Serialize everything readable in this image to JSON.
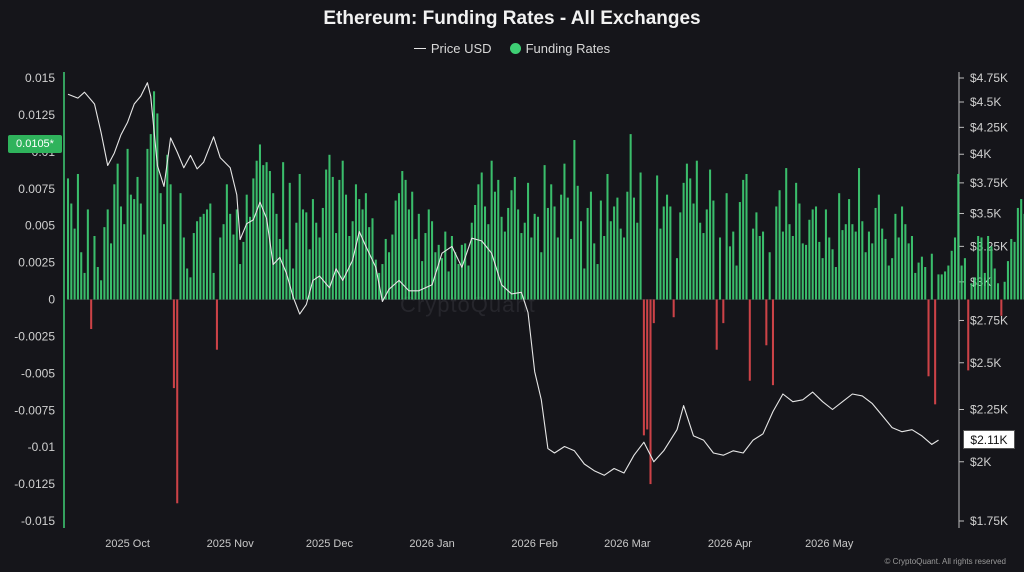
{
  "chart_data": {
    "type": "bar+line",
    "title": "Ethereum: Funding Rates - All Exchanges",
    "legend": [
      "Price USD",
      "Funding Rates"
    ],
    "legend_position": "top-center",
    "grid": false,
    "colors": {
      "positive": "#3ecf74",
      "negative": "#e0474c",
      "price_line": "#e6e6e6",
      "background": "#15151a"
    },
    "left_axis": {
      "name": "Funding Rates",
      "ylim": [
        -0.015,
        0.015
      ],
      "ticks": [
        "0.015",
        "0.0125",
        "0.01",
        "0.0075",
        "0.005",
        "0.0025",
        "0",
        "-0.0025",
        "-0.005",
        "-0.0075",
        "-0.01",
        "-0.0125",
        "-0.015"
      ]
    },
    "right_axis": {
      "name": "Price USD",
      "scale": "log",
      "ylim": [
        1750,
        4750
      ],
      "ticks": [
        {
          "value": 4750,
          "label": "$4.75K"
        },
        {
          "value": 4500,
          "label": "$4.5K"
        },
        {
          "value": 4250,
          "label": "$4.25K"
        },
        {
          "value": 4000,
          "label": "$4K"
        },
        {
          "value": 3750,
          "label": "$3.75K"
        },
        {
          "value": 3500,
          "label": "$3.5K"
        },
        {
          "value": 3250,
          "label": "$3.25K"
        },
        {
          "value": 3000,
          "label": "$3K"
        },
        {
          "value": 2750,
          "label": "$2.75K"
        },
        {
          "value": 2500,
          "label": "$2.5K"
        },
        {
          "value": 2250,
          "label": "$2.25K"
        },
        {
          "value": 2000,
          "label": "$2K"
        },
        {
          "value": 1750,
          "label": "$1.75K"
        }
      ]
    },
    "x_axis": {
      "range": [
        "2025-09-13",
        "2026-06-08"
      ],
      "ticks": [
        {
          "date": "2025-10-01",
          "label": "2025 Oct"
        },
        {
          "date": "2025-11-01",
          "label": "2025 Nov"
        },
        {
          "date": "2025-12-01",
          "label": "2025 Dec"
        },
        {
          "date": "2026-01-01",
          "label": "2026 Jan"
        },
        {
          "date": "2026-02-01",
          "label": "2026 Feb"
        },
        {
          "date": "2026-03-01",
          "label": "2026 Mar"
        },
        {
          "date": "2026-04-01",
          "label": "2026 Apr"
        },
        {
          "date": "2026-05-01",
          "label": "2026 May"
        }
      ]
    },
    "funding_rates": {
      "start_date": "2025-09-13",
      "interval_days": 1,
      "values": [
        0.0082,
        0.0065,
        0.0048,
        0.0085,
        0.0032,
        0.0018,
        0.0061,
        -0.002,
        0.0043,
        0.0022,
        0.0013,
        0.0049,
        0.0061,
        0.0038,
        0.0078,
        0.0092,
        0.0063,
        0.0051,
        0.0102,
        0.0071,
        0.0068,
        0.0083,
        0.0065,
        0.0044,
        0.0102,
        0.0112,
        0.0141,
        0.0126,
        0.0072,
        0.0051,
        0.0098,
        0.0078,
        -0.006,
        -0.0138,
        0.0072,
        0.0042,
        0.0021,
        0.0015,
        0.0045,
        0.0053,
        0.0056,
        0.0058,
        0.0061,
        0.0065,
        0.0018,
        -0.0034,
        0.0042,
        0.0051,
        0.0078,
        0.0058,
        0.0044,
        0.0061,
        0.0024,
        0.0039,
        0.0071,
        0.0056,
        0.0082,
        0.0094,
        0.0105,
        0.0091,
        0.0093,
        0.0087,
        0.0072,
        0.0058,
        0.0041,
        0.0093,
        0.0034,
        0.0079,
        0.0021,
        0.0052,
        0.0085,
        0.0061,
        0.0059,
        0.0034,
        0.0068,
        0.0052,
        0.0042,
        0.0062,
        0.0088,
        0.0098,
        0.0083,
        0.0045,
        0.0081,
        0.0094,
        0.0071,
        0.0043,
        0.0053,
        0.0078,
        0.0068,
        0.0061,
        0.0072,
        0.0049,
        0.0055,
        0.0027,
        0.0018,
        0.0024,
        0.0041,
        0.0032,
        0.0044,
        0.0067,
        0.0072,
        0.0087,
        0.0081,
        0.0061,
        0.0073,
        0.0041,
        0.0058,
        0.0026,
        0.0045,
        0.0061,
        0.0053,
        0.0032,
        0.0037,
        0.0028,
        0.0046,
        0.0019,
        0.0043,
        0.0032,
        0.0024,
        0.0037,
        0.0038,
        0.0023,
        0.0052,
        0.0064,
        0.0078,
        0.0086,
        0.0063,
        0.0051,
        0.0094,
        0.0073,
        0.0081,
        0.0056,
        0.0046,
        0.0062,
        0.0074,
        0.0083,
        0.0061,
        0.0045,
        0.0052,
        0.0079,
        0.0042,
        0.0058,
        0.0056,
        0.0032,
        0.0091,
        0.0062,
        0.0078,
        0.0063,
        0.0042,
        0.0071,
        0.0092,
        0.0069,
        0.0041,
        0.0108,
        0.0077,
        0.0053,
        0.0021,
        0.0062,
        0.0073,
        0.0038,
        0.0024,
        0.0067,
        0.0043,
        0.0085,
        0.0053,
        0.0063,
        0.0069,
        0.0048,
        0.0042,
        0.0073,
        0.0112,
        0.0069,
        0.0052,
        0.0086,
        -0.0092,
        -0.0088,
        -0.0125,
        -0.0016,
        0.0084,
        0.0048,
        0.0063,
        0.0071,
        0.0063,
        -0.0012,
        0.0028,
        0.0059,
        0.0079,
        0.0092,
        0.0082,
        0.0065,
        0.0094,
        0.0052,
        0.0045,
        0.0061,
        0.0088,
        0.0067,
        -0.0034,
        0.0042,
        -0.0016,
        0.0072,
        0.0036,
        0.0046,
        0.0023,
        0.0066,
        0.0081,
        0.0085,
        -0.0055,
        0.0048,
        0.0059,
        0.0043,
        0.0046,
        -0.0031,
        0.0032,
        -0.0058,
        0.0063,
        0.0074,
        0.0046,
        0.0089,
        0.0051,
        0.0043,
        0.0079,
        0.0065,
        0.0038,
        0.0037,
        0.0054,
        0.0061,
        0.0063,
        0.0039,
        0.0028,
        0.0061,
        0.0042,
        0.0034,
        0.0022,
        0.0072,
        0.0047,
        0.0051,
        0.0068,
        0.0051,
        0.0046,
        0.0089,
        0.0053,
        0.0032,
        0.0046,
        0.0038,
        0.0062,
        0.0071,
        0.0048,
        0.0041,
        0.0023,
        0.0028,
        0.0058,
        0.0042,
        0.0063,
        0.0051,
        0.0038,
        0.0043,
        0.0018,
        0.0025,
        0.0029,
        0.0022,
        -0.0052,
        0.0031,
        -0.0071,
        0.0017,
        0.0017,
        0.0019,
        0.0023,
        0.0033,
        0.0042,
        0.0085,
        0.0023,
        0.0028,
        -0.0048,
        0.0011,
        0.0015,
        0.0043,
        0.0042,
        0.0018,
        0.0043,
        0.0036,
        0.0021,
        0.0011,
        -0.0011,
        0.0012,
        0.0026,
        0.0041,
        0.0039,
        0.0062,
        0.0068,
        0.0058,
        0.0052,
        0.0091,
        0.0072,
        0.0088,
        0.0096,
        0.0082,
        0.0098,
        0.0108,
        0.0087,
        0.0081,
        0.0115,
        0.0088
      ]
    },
    "price_usd": {
      "points": [
        [
          "2025-09-13",
          4580
        ],
        [
          "2025-09-16",
          4540
        ],
        [
          "2025-09-18",
          4600
        ],
        [
          "2025-09-21",
          4480
        ],
        [
          "2025-09-23",
          4200
        ],
        [
          "2025-09-25",
          3900
        ],
        [
          "2025-09-27",
          4010
        ],
        [
          "2025-09-29",
          4180
        ],
        [
          "2025-10-01",
          4300
        ],
        [
          "2025-10-03",
          4480
        ],
        [
          "2025-10-05",
          4560
        ],
        [
          "2025-10-07",
          4700
        ],
        [
          "2025-10-08",
          4560
        ],
        [
          "2025-10-10",
          3900
        ],
        [
          "2025-10-12",
          3720
        ],
        [
          "2025-10-14",
          4150
        ],
        [
          "2025-10-16",
          4020
        ],
        [
          "2025-10-18",
          3880
        ],
        [
          "2025-10-20",
          3990
        ],
        [
          "2025-10-22",
          3870
        ],
        [
          "2025-10-24",
          3930
        ],
        [
          "2025-10-27",
          4160
        ],
        [
          "2025-10-29",
          3970
        ],
        [
          "2025-11-01",
          3880
        ],
        [
          "2025-11-03",
          3650
        ],
        [
          "2025-11-04",
          3300
        ],
        [
          "2025-11-06",
          3420
        ],
        [
          "2025-11-08",
          3450
        ],
        [
          "2025-11-10",
          3590
        ],
        [
          "2025-11-12",
          3460
        ],
        [
          "2025-11-14",
          3120
        ],
        [
          "2025-11-16",
          3170
        ],
        [
          "2025-11-18",
          3060
        ],
        [
          "2025-11-20",
          2900
        ],
        [
          "2025-11-22",
          2790
        ],
        [
          "2025-11-24",
          2850
        ],
        [
          "2025-11-26",
          3010
        ],
        [
          "2025-11-28",
          3040
        ],
        [
          "2025-12-01",
          2960
        ],
        [
          "2025-12-03",
          3090
        ],
        [
          "2025-12-05",
          3010
        ],
        [
          "2025-12-08",
          3150
        ],
        [
          "2025-12-10",
          3360
        ],
        [
          "2025-12-12",
          3250
        ],
        [
          "2025-12-15",
          3100
        ],
        [
          "2025-12-17",
          2870
        ],
        [
          "2025-12-19",
          2950
        ],
        [
          "2025-12-22",
          3010
        ],
        [
          "2025-12-25",
          2940
        ],
        [
          "2025-12-28",
          2940
        ],
        [
          "2026-01-01",
          2980
        ],
        [
          "2026-01-04",
          3200
        ],
        [
          "2026-01-07",
          3250
        ],
        [
          "2026-01-10",
          3100
        ],
        [
          "2026-01-13",
          3310
        ],
        [
          "2026-01-16",
          3290
        ],
        [
          "2026-01-19",
          3200
        ],
        [
          "2026-01-22",
          2980
        ],
        [
          "2026-01-25",
          2920
        ],
        [
          "2026-01-28",
          2930
        ],
        [
          "2026-01-30",
          2800
        ],
        [
          "2026-02-01",
          2450
        ],
        [
          "2026-02-03",
          2300
        ],
        [
          "2026-02-05",
          2060
        ],
        [
          "2026-02-07",
          2040
        ],
        [
          "2026-02-10",
          2070
        ],
        [
          "2026-02-13",
          2050
        ],
        [
          "2026-02-16",
          1990
        ],
        [
          "2026-02-19",
          1960
        ],
        [
          "2026-02-22",
          1940
        ],
        [
          "2026-02-25",
          1970
        ],
        [
          "2026-02-28",
          1950
        ],
        [
          "2026-03-03",
          2030
        ],
        [
          "2026-03-06",
          2090
        ],
        [
          "2026-03-09",
          2000
        ],
        [
          "2026-03-12",
          2050
        ],
        [
          "2026-03-16",
          2150
        ],
        [
          "2026-03-18",
          2270
        ],
        [
          "2026-03-21",
          2120
        ],
        [
          "2026-03-24",
          2100
        ],
        [
          "2026-03-27",
          2040
        ],
        [
          "2026-03-30",
          2030
        ],
        [
          "2026-04-02",
          2050
        ],
        [
          "2026-04-05",
          2040
        ],
        [
          "2026-04-08",
          2100
        ],
        [
          "2026-04-11",
          2130
        ],
        [
          "2026-04-14",
          2240
        ],
        [
          "2026-04-17",
          2330
        ],
        [
          "2026-04-20",
          2290
        ],
        [
          "2026-04-23",
          2300
        ],
        [
          "2026-04-26",
          2340
        ],
        [
          "2026-04-29",
          2290
        ],
        [
          "2026-05-02",
          2250
        ],
        [
          "2026-05-05",
          2290
        ],
        [
          "2026-05-08",
          2330
        ],
        [
          "2026-05-11",
          2320
        ],
        [
          "2026-05-14",
          2280
        ],
        [
          "2026-05-17",
          2220
        ],
        [
          "2026-05-20",
          2160
        ],
        [
          "2026-05-23",
          2140
        ],
        [
          "2026-05-26",
          2150
        ],
        [
          "2026-05-29",
          2120
        ],
        [
          "2026-06-01",
          2080
        ],
        [
          "2026-06-03",
          2100
        ]
      ]
    },
    "current_funding_label": "0.0105*",
    "current_price_label": "$2.11K",
    "watermark": "CryptoQuant",
    "credit": "© CryptoQuant. All rights reserved"
  }
}
